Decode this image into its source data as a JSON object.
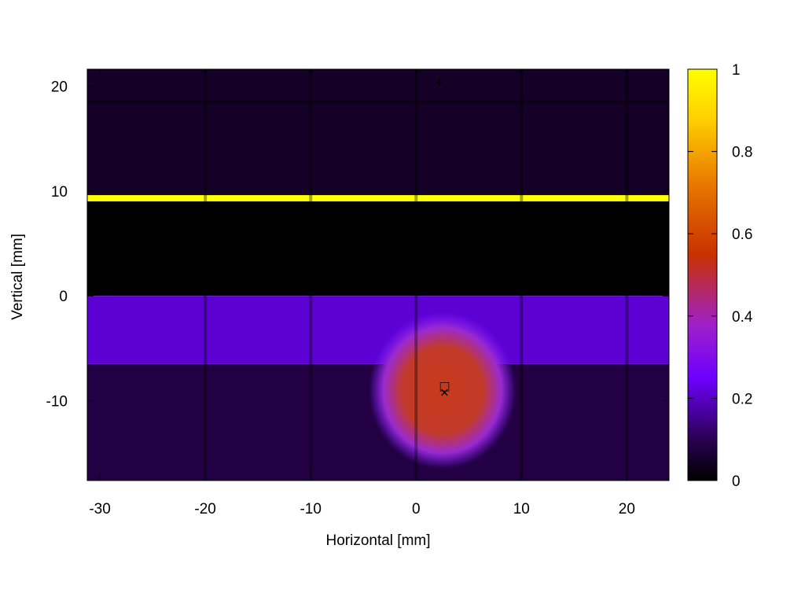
{
  "chart_data": {
    "type": "heatmap",
    "title": "",
    "xlabel": "Horizontal [mm]",
    "ylabel": "Vertical [mm]",
    "xlim": [
      -31.2,
      24
    ],
    "ylim": [
      -17.6,
      21.6
    ],
    "x_ticks": [
      -30,
      -20,
      -10,
      0,
      10,
      20
    ],
    "y_ticks": [
      -10,
      0,
      10,
      20
    ],
    "x_tick_labels": [
      "-30",
      "-20",
      "-10",
      "0",
      "10",
      "20"
    ],
    "y_tick_labels": [
      "-10",
      "0",
      "10",
      "20"
    ],
    "colorbar": {
      "range": [
        0,
        1
      ],
      "ticks": [
        0,
        0.2,
        0.4,
        0.6,
        0.8,
        1
      ],
      "tick_labels": [
        "0",
        "0.2",
        "0.4",
        "0.6",
        "0.8",
        "1"
      ],
      "colormap": [
        "#000000",
        "#2a0050",
        "#6e00ff",
        "#a020c8",
        "#c83200",
        "#e87800",
        "#ffe600",
        "#ffff00"
      ]
    },
    "regions": [
      {
        "name": "upper",
        "x": [
          -31.2,
          24
        ],
        "y": [
          9.4,
          21.6
        ],
        "value": 0.07
      },
      {
        "name": "edge-line",
        "x": [
          -31.2,
          24
        ],
        "y": [
          9.0,
          9.6
        ],
        "value": 1.0
      },
      {
        "name": "shadow",
        "x": [
          -31.2,
          24
        ],
        "y": [
          0,
          9.0
        ],
        "value": 0.0
      },
      {
        "name": "lower-band",
        "x": [
          -31.2,
          24
        ],
        "y": [
          -6.5,
          0
        ],
        "value": 0.25
      },
      {
        "name": "lower",
        "x": [
          -31.2,
          24
        ],
        "y": [
          -17.6,
          -6.5
        ],
        "value": 0.12
      }
    ],
    "spot": {
      "center": [
        2.5,
        -9
      ],
      "rx": 7,
      "ry": 7.5,
      "peak": 0.5
    },
    "grid_lines_x": [
      -20,
      -10,
      0,
      10,
      20
    ],
    "grid_lines_y": [
      18.5
    ],
    "markers": [
      {
        "symbol": "+",
        "x": 2.2,
        "y": 20.2
      },
      {
        "symbol": "□",
        "x": 2.7,
        "y": -8.7
      },
      {
        "symbol": "×",
        "x": 2.7,
        "y": -9.3
      }
    ]
  }
}
